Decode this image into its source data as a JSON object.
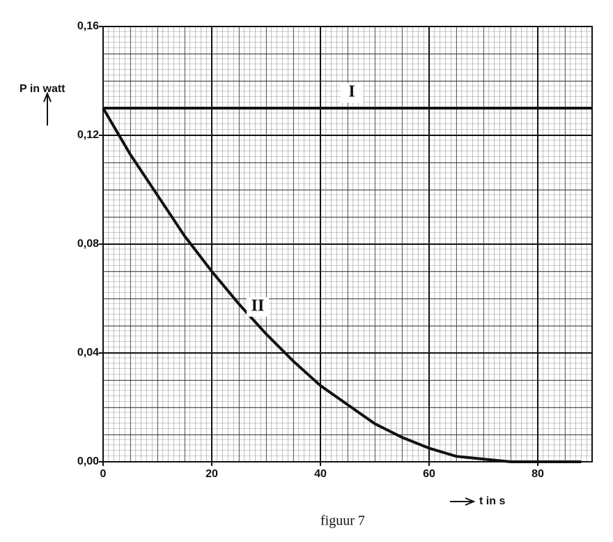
{
  "chart_data": {
    "type": "line",
    "x_label": "t in s",
    "y_label": "P in watt",
    "caption": "figuur 7",
    "xlim": [
      0,
      90
    ],
    "ylim": [
      0,
      0.16
    ],
    "xticks": [
      0,
      20,
      40,
      60,
      80
    ],
    "yticks": [
      {
        "value": 0,
        "label": "0,00"
      },
      {
        "value": 0.04,
        "label": "0,04"
      },
      {
        "value": 0.08,
        "label": "0,08"
      },
      {
        "value": 0.12,
        "label": "0,12"
      },
      {
        "value": 0.16,
        "label": "0,16"
      }
    ],
    "grid": true,
    "series": [
      {
        "name": "I",
        "color": "#111111",
        "x": [
          0,
          90
        ],
        "values": [
          0.13,
          0.13
        ]
      },
      {
        "name": "II",
        "color": "#111111",
        "x": [
          0,
          5,
          10,
          15,
          20,
          25,
          30,
          35,
          40,
          45,
          50,
          55,
          60,
          65,
          70,
          75,
          80,
          85,
          88
        ],
        "values": [
          0.13,
          0.113,
          0.098,
          0.083,
          0.07,
          0.058,
          0.047,
          0.037,
          0.028,
          0.021,
          0.014,
          0.009,
          0.005,
          0.002,
          0.001,
          0,
          0,
          0,
          0
        ]
      }
    ]
  }
}
